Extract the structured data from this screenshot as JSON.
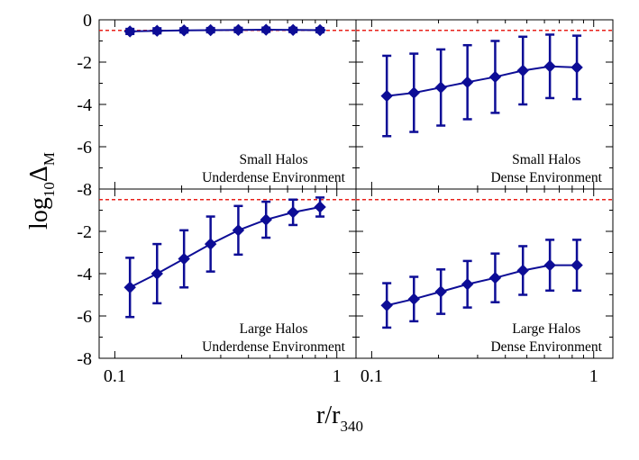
{
  "chart_data": {
    "type": "scatter",
    "title": "",
    "xlabel": {
      "main": "r/r",
      "sub": "340"
    },
    "ylabel": {
      "main": "log",
      "sub1": "10",
      "greek": "Δ",
      "sub2": "M"
    },
    "xscale": "log",
    "xlim": [
      0.085,
      1.22
    ],
    "ylim": [
      -8,
      0
    ],
    "xticks": [
      {
        "value": 0.1,
        "label": "0.1"
      },
      {
        "value": 1,
        "label": "1"
      }
    ],
    "yticks_top": [
      {
        "value": 0,
        "label": "0"
      },
      {
        "value": -2,
        "label": "-2"
      },
      {
        "value": -4,
        "label": "-4"
      },
      {
        "value": -6,
        "label": "-6"
      },
      {
        "value": -8,
        "label": "-8"
      }
    ],
    "yticks_bottom": [
      {
        "value": -2,
        "label": "-2"
      },
      {
        "value": -4,
        "label": "-4"
      },
      {
        "value": -6,
        "label": "-6"
      },
      {
        "value": -8,
        "label": "-8"
      }
    ],
    "reference_line": {
      "y": -0.5,
      "color": "#e8201a",
      "style": "dashed"
    },
    "series_color": "#0d0d96",
    "x": [
      0.117,
      0.155,
      0.205,
      0.27,
      0.36,
      0.48,
      0.635,
      0.84
    ],
    "panels": [
      {
        "row": 0,
        "col": 0,
        "line1": "Small Halos",
        "line2": "Underdense Environment",
        "y": [
          -0.55,
          -0.52,
          -0.5,
          -0.49,
          -0.48,
          -0.47,
          -0.48,
          -0.49
        ],
        "err": [
          0.12,
          0.12,
          0.1,
          0.1,
          0.1,
          0.1,
          0.1,
          0.1
        ]
      },
      {
        "row": 0,
        "col": 1,
        "line1": "Small Halos",
        "line2": "Dense Environment",
        "y": [
          -3.6,
          -3.45,
          -3.2,
          -2.95,
          -2.7,
          -2.4,
          -2.2,
          -2.25
        ],
        "err": [
          1.9,
          1.85,
          1.8,
          1.75,
          1.7,
          1.6,
          1.5,
          1.5
        ]
      },
      {
        "row": 1,
        "col": 0,
        "line1": "Large Halos",
        "line2": "Underdense Environment",
        "y": [
          -4.65,
          -4.0,
          -3.3,
          -2.6,
          -1.95,
          -1.45,
          -1.1,
          -0.85
        ],
        "err": [
          1.4,
          1.4,
          1.35,
          1.3,
          1.15,
          0.85,
          0.6,
          0.45
        ]
      },
      {
        "row": 1,
        "col": 1,
        "line1": "Large Halos",
        "line2": "Dense Environment",
        "y": [
          -5.5,
          -5.2,
          -4.85,
          -4.5,
          -4.2,
          -3.85,
          -3.6,
          -3.6
        ],
        "err": [
          1.05,
          1.05,
          1.05,
          1.1,
          1.15,
          1.15,
          1.2,
          1.2
        ]
      }
    ]
  }
}
